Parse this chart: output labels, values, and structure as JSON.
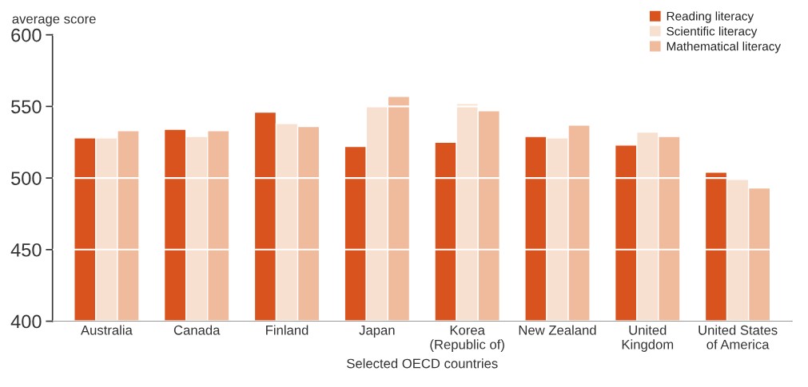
{
  "chart_data": {
    "type": "bar",
    "ylabel": "average score",
    "xlabel": "Selected OECD countries",
    "categories": [
      "Australia",
      "Canada",
      "Finland",
      "Japan",
      "Korea\n(Republic of)",
      "New Zealand",
      "United\nKingdom",
      "United States\nof America"
    ],
    "series": [
      {
        "name": "Reading literacy",
        "color": "#d9531e",
        "values": [
          528,
          534,
          546,
          522,
          525,
          529,
          523,
          504
        ]
      },
      {
        "name": "Scientific literacy",
        "color": "#f8e0d0",
        "values": [
          528,
          529,
          538,
          550,
          552,
          528,
          532,
          499
        ]
      },
      {
        "name": "Mathematical literacy",
        "color": "#f0ba9c",
        "values": [
          533,
          533,
          536,
          557,
          547,
          537,
          529,
          493
        ]
      }
    ],
    "ylim": [
      400,
      600
    ],
    "yticks": [
      400,
      450,
      500,
      550,
      600
    ],
    "grid": "y",
    "legend": "top right"
  }
}
